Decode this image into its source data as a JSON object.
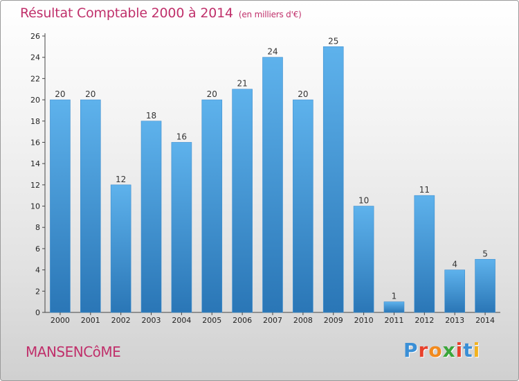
{
  "title": {
    "main": "Résultat Comptable 2000 à 2014",
    "unit": "(en milliers d'€)"
  },
  "town": "MANSENCôME",
  "logo": {
    "letters": [
      "P",
      "r",
      "o",
      "x",
      "i",
      "t",
      "i"
    ],
    "colors": [
      "#3a8fd6",
      "#e8412c",
      "#f28a1e",
      "#3aa63a",
      "#e8412c",
      "#3a8fd6",
      "#f2b21e"
    ]
  },
  "colors": {
    "bar_top": "#5eb2ec",
    "bar_bottom": "#2a76b6",
    "title": "#c0306b"
  },
  "chart_data": {
    "type": "bar",
    "title": "Résultat Comptable 2000 à 2014",
    "ylabel": "(en milliers d'€)",
    "xlabel": "",
    "categories": [
      "2000",
      "2001",
      "2002",
      "2003",
      "2004",
      "2005",
      "2006",
      "2007",
      "2008",
      "2009",
      "2010",
      "2011",
      "2012",
      "2013",
      "2014"
    ],
    "values": [
      20,
      20,
      12,
      18,
      16,
      20,
      21,
      24,
      20,
      25,
      10,
      1,
      11,
      4,
      5
    ],
    "ylim": [
      0,
      26
    ],
    "yticks": [
      0,
      2,
      4,
      6,
      8,
      10,
      12,
      14,
      16,
      18,
      20,
      22,
      24,
      26
    ],
    "grid": false,
    "data_labels": true
  }
}
